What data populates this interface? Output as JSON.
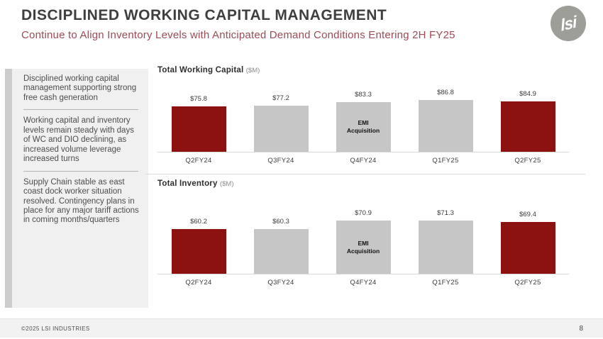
{
  "header": {
    "title": "DISCIPLINED WORKING CAPITAL MANAGEMENT",
    "subtitle": "Continue to Align Inventory Levels with Anticipated Demand Conditions Entering 2H FY25",
    "logo_text": "lsi"
  },
  "sidebar": {
    "notes": [
      "Disciplined working capital management supporting strong free cash generation",
      "Working capital and inventory levels remain steady with days of WC and DIO declining, as increased volume leverage increased turns",
      "Supply Chain stable as east coast dock worker situation resolved.  Contingency plans in place for any major tariff actions in coming months/quarters"
    ]
  },
  "chart_data": [
    {
      "type": "bar",
      "title": "Total Working Capital",
      "unit_label": "($M)",
      "categories": [
        "Q2FY24",
        "Q3FY24",
        "Q4FY24",
        "Q1FY25",
        "Q2FY25"
      ],
      "values": [
        75.8,
        77.2,
        83.3,
        86.8,
        84.9
      ],
      "value_labels": [
        "$75.8",
        "$77.2",
        "$83.3",
        "$86.8",
        "$84.9"
      ],
      "bar_colors": [
        "#8c1212",
        "#c6c6c6",
        "#c6c6c6",
        "#c6c6c6",
        "#8c1212"
      ],
      "annotation": {
        "bar_index": 2,
        "text": "EMI\nAcquisition"
      },
      "baseline": 0,
      "grid": false,
      "legend": false
    },
    {
      "type": "bar",
      "title": "Total Inventory",
      "unit_label": "($M)",
      "categories": [
        "Q2FY24",
        "Q3FY24",
        "Q4FY24",
        "Q1FY25",
        "Q2FY25"
      ],
      "values": [
        60.2,
        60.3,
        70.9,
        71.3,
        69.4
      ],
      "value_labels": [
        "$60.2",
        "$60.3",
        "$70.9",
        "$71.3",
        "$69.4"
      ],
      "bar_colors": [
        "#8c1212",
        "#c6c6c6",
        "#c6c6c6",
        "#c6c6c6",
        "#8c1212"
      ],
      "annotation": {
        "bar_index": 2,
        "text": "EMI\nAcquisition"
      },
      "baseline": 0,
      "grid": false,
      "legend": false
    }
  ],
  "footer": {
    "copyright": "©2025 LSI INDUSTRIES",
    "page_number": "8"
  },
  "colors": {
    "accent_red": "#8c1212",
    "bar_gray": "#c6c6c6",
    "subtitle_red": "#9d4b54",
    "sidebar_bg": "#f0f0f1",
    "sidebar_accent": "#cccccc",
    "footer_bg": "#f2f2f2",
    "logo_gray": "#9e9e99"
  }
}
